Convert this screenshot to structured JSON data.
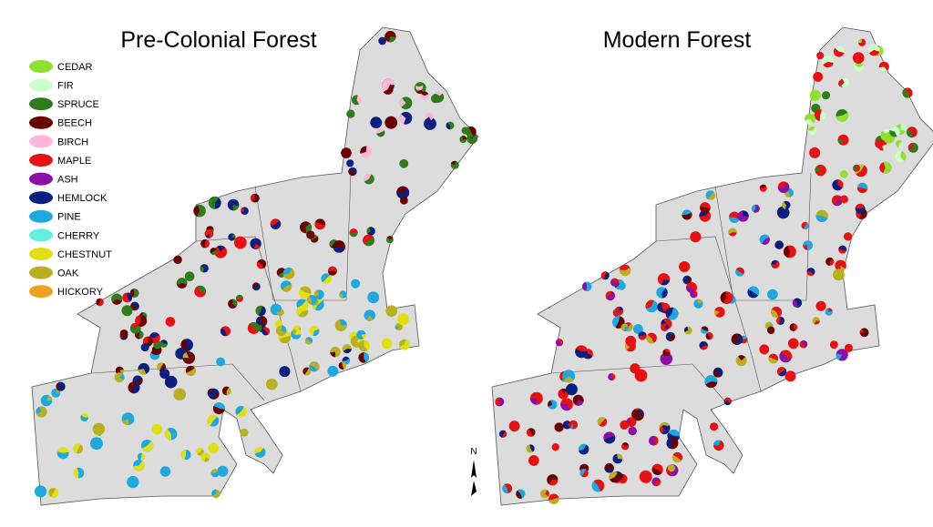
{
  "maps": [
    {
      "title": "Pre-Colonial Forest"
    },
    {
      "title": "Modern Forest"
    }
  ],
  "legend": [
    {
      "label": "CEDAR",
      "color": "#90e030"
    },
    {
      "label": "FIR",
      "color": "#ccffcc"
    },
    {
      "label": "SPRUCE",
      "color": "#2e7d1a"
    },
    {
      "label": "BEECH",
      "color": "#6b0000"
    },
    {
      "label": "BIRCH",
      "color": "#ffb6d9"
    },
    {
      "label": "MAPLE",
      "color": "#e81010"
    },
    {
      "label": "ASH",
      "color": "#8a10a8"
    },
    {
      "label": "HEMLOCK",
      "color": "#0a1f80"
    },
    {
      "label": "PINE",
      "color": "#1ea8e0"
    },
    {
      "label": "CHERRY",
      "color": "#66eedd"
    },
    {
      "label": "CHESTNUT",
      "color": "#e0e010"
    },
    {
      "label": "OAK",
      "color": "#b8b020"
    },
    {
      "label": "HICKORY",
      "color": "#f0a020"
    }
  ],
  "compass": "N"
}
